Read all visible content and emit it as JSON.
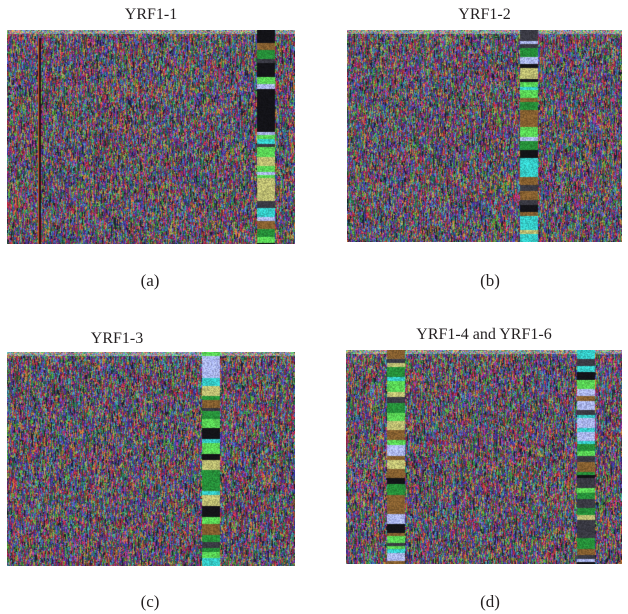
{
  "figure": {
    "panels": [
      {
        "id": "a",
        "title": "YRF1-1",
        "caption": "(a)",
        "bright_lanes": [
          "right"
        ],
        "dark_lanes": [
          "left"
        ]
      },
      {
        "id": "b",
        "title": "YRF1-2",
        "caption": "(b)",
        "bright_lanes": [
          "center-right"
        ],
        "dark_lanes": []
      },
      {
        "id": "c",
        "title": "YRF1-3",
        "caption": "(c)",
        "bright_lanes": [
          "right"
        ],
        "dark_lanes": []
      },
      {
        "id": "d",
        "title": "YRF1-4 and YRF1-6",
        "caption": "(d)",
        "bright_lanes": [
          "left",
          "right"
        ],
        "dark_lanes": []
      }
    ],
    "colors": {
      "background": "#ffffff",
      "text": "#231f20",
      "noise_base": "#3a2d48",
      "band_cyan": "#38d6d2",
      "band_lilac": "#b4c0ff",
      "band_green": "#5fe05a"
    }
  }
}
